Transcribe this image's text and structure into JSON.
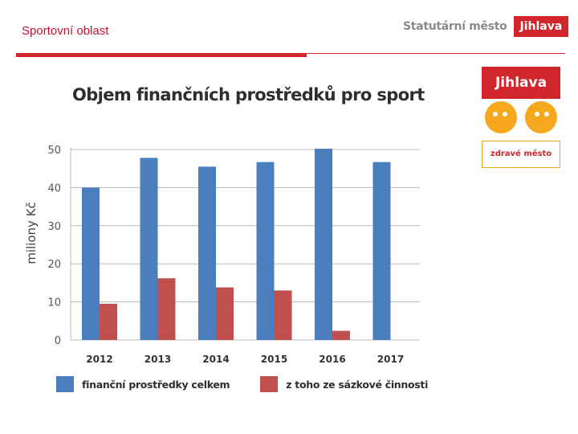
{
  "header": {
    "section_title": "Sportovní oblast",
    "brand_text": "Statutární město",
    "brand_box": "Jihlava"
  },
  "logo": {
    "top_text": "Jihlava",
    "bottom_text": "zdravé město"
  },
  "colors": {
    "accent": "#d0262c",
    "series_total": "#4a7ebf",
    "series_betting": "#c0504d",
    "logo_orange": "#f5a81c"
  },
  "chart_data": {
    "type": "bar",
    "title": "Objem finančních prostředků pro sport",
    "xlabel": "",
    "ylabel": "miliony Kč",
    "ylim": [
      0,
      50
    ],
    "yticks": [
      0,
      10,
      20,
      30,
      40,
      50
    ],
    "grid": true,
    "legend_position": "bottom",
    "categories": [
      "2012",
      "2013",
      "2014",
      "2015",
      "2016",
      "2017"
    ],
    "series": [
      {
        "name": "finanční prostředky celkem",
        "values": [
          40,
          47.8,
          45.5,
          46.7,
          50.2,
          46.7
        ]
      },
      {
        "name": "z toho ze sázkové činnosti",
        "values": [
          9.5,
          16.2,
          13.8,
          13,
          2.4,
          0
        ]
      }
    ]
  }
}
